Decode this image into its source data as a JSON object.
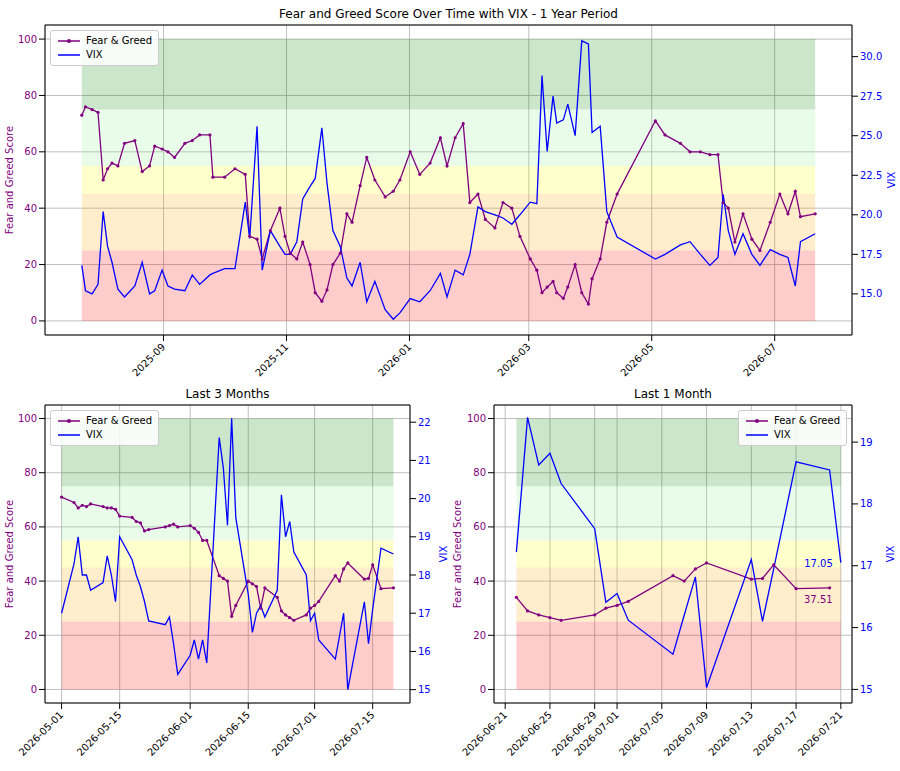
{
  "chart_data": [
    {
      "type": "line",
      "title": "Fear and Greed Score Over Time with VIX - 1 Year Period",
      "x": [
        2025.555,
        2025.56,
        2025.569,
        2025.577,
        2025.584,
        2025.59,
        2025.596,
        2025.604,
        2025.613,
        2025.627,
        2025.637,
        2025.647,
        2025.654,
        2025.664,
        2025.672,
        2025.681,
        2025.695,
        2025.705,
        2025.715,
        2025.729,
        2025.733,
        2025.749,
        2025.763,
        2025.777,
        2025.783,
        2025.793,
        2025.8,
        2025.811,
        2025.824,
        2025.831,
        2025.838,
        2025.847,
        2025.855,
        2025.865,
        2025.872,
        2025.881,
        2025.888,
        2025.896,
        2025.906,
        2025.915,
        2025.922,
        2025.933,
        2025.942,
        2025.953,
        2025.967,
        2025.978,
        2025.987,
        2026.001,
        2026.014,
        2026.028,
        2026.042,
        2026.051,
        2026.062,
        2026.073,
        2026.082,
        2026.093,
        2026.103,
        2026.116,
        2026.127,
        2026.139,
        2026.15,
        2026.164,
        2026.173,
        2026.18,
        2026.187,
        2026.195,
        2026.2,
        2026.209,
        2026.215,
        2026.225,
        2026.234,
        2026.243,
        2026.248,
        2026.259,
        2026.268,
        2026.282,
        2026.334,
        2026.347,
        2026.368,
        2026.381,
        2026.395,
        2026.408,
        2026.419,
        2026.426,
        2026.433,
        2026.442,
        2026.453,
        2026.465,
        2026.476,
        2026.49,
        2026.503,
        2026.514,
        2026.524,
        2026.531,
        2026.551
      ],
      "xlim": [
        2025.505,
        2026.601
      ],
      "xticks": [
        {
          "value": 2025.666,
          "label": "2025-09"
        },
        {
          "value": 2025.833,
          "label": "2025-11"
        },
        {
          "value": 2026,
          "label": "2026-01"
        },
        {
          "value": 2026.162,
          "label": "2026-03"
        },
        {
          "value": 2026.329,
          "label": "2026-05"
        },
        {
          "value": 2026.496,
          "label": "2026-07"
        }
      ],
      "y_label": "Fear and Greed Score",
      "y2_label": "VIX",
      "ylim": [
        -5,
        105
      ],
      "yticks": [
        0,
        20,
        40,
        60,
        80,
        100
      ],
      "y2lim": [
        12.4,
        32
      ],
      "y2ticks": [
        {
          "value": 15,
          "label": "15.0"
        },
        {
          "value": 17.5,
          "label": "17.5"
        },
        {
          "value": 20,
          "label": "20.0"
        },
        {
          "value": 22.5,
          "label": "22.5"
        },
        {
          "value": 25,
          "label": "25.0"
        },
        {
          "value": 27.5,
          "label": "27.5"
        },
        {
          "value": 30,
          "label": "30.0"
        }
      ],
      "grid": true,
      "legend": "upper left",
      "bands": [
        {
          "from": 0,
          "to": 25,
          "color": "#ff0000"
        },
        {
          "from": 25,
          "to": 45,
          "color": "#ffa500"
        },
        {
          "from": 45,
          "to": 55,
          "color": "#ffff00"
        },
        {
          "from": 55,
          "to": 75,
          "color": "#90ee90"
        },
        {
          "from": 75,
          "to": 100,
          "color": "#008000"
        }
      ],
      "series": [
        {
          "name": "Fear & Greed",
          "color": "#800080",
          "marker": "dot",
          "values": [
            73,
            76,
            75,
            74,
            50,
            54,
            56,
            55,
            63,
            64,
            53,
            55,
            62,
            61,
            60,
            58,
            63,
            64,
            66,
            66,
            51,
            51,
            54,
            52,
            30,
            29,
            22,
            32,
            40,
            30,
            24,
            22,
            28,
            20,
            10,
            7,
            11,
            20,
            24,
            38,
            35,
            48,
            58,
            50,
            44,
            46,
            50,
            60,
            52,
            56,
            65,
            55,
            65,
            70,
            42,
            45,
            36,
            33,
            42,
            40,
            30,
            22,
            18,
            10,
            12,
            14,
            10,
            8,
            12,
            20,
            10,
            6,
            15,
            22,
            35,
            45,
            71,
            66,
            63,
            60,
            60,
            59,
            59,
            42,
            40,
            28,
            38,
            29,
            25,
            35,
            45,
            38,
            46,
            37,
            38
          ]
        },
        {
          "name": "VIX",
          "color": "#0000ff",
          "axis": "y2",
          "values": [
            16.8,
            15.2,
            15,
            15.6,
            20.2,
            18,
            17,
            15.3,
            14.8,
            15.5,
            17,
            15,
            15.2,
            16.5,
            15.5,
            15.3,
            15.2,
            16.2,
            15.6,
            16.2,
            16.3,
            16.6,
            16.6,
            20.8,
            18.5,
            25.6,
            16.5,
            19,
            18,
            17.5,
            17.5,
            18.3,
            21,
            21.8,
            22.3,
            25.5,
            22,
            19,
            18,
            16,
            15.5,
            17,
            14.5,
            15.8,
            14,
            13.4,
            13.8,
            14.7,
            14.5,
            15.2,
            16.3,
            14.8,
            16.5,
            16.2,
            17.5,
            20.5,
            20.2,
            20,
            19.8,
            19.4,
            20,
            20.8,
            20.7,
            28.8,
            24,
            27.5,
            25.8,
            26,
            27,
            25,
            31,
            30.8,
            25.2,
            25.6,
            20.2,
            18.6,
            17.2,
            17.5,
            18.1,
            18.3,
            17.5,
            16.8,
            17.3,
            21.3,
            19,
            17.5,
            18.8,
            17.5,
            16.8,
            17.8,
            17.5,
            17.3,
            15.5,
            18.3,
            18.8
          ]
        }
      ]
    },
    {
      "type": "line",
      "title": "Last 3 Months",
      "x": [
        "2026-05-01",
        "2026-05-04",
        "2026-05-05",
        "2026-05-06",
        "2026-05-07",
        "2026-05-08",
        "2026-05-11",
        "2026-05-12",
        "2026-05-13",
        "2026-05-14",
        "2026-05-15",
        "2026-05-18",
        "2026-05-19",
        "2026-05-20",
        "2026-05-21",
        "2026-05-22",
        "2026-05-26",
        "2026-05-27",
        "2026-05-28",
        "2026-05-29",
        "2026-06-01",
        "2026-06-02",
        "2026-06-03",
        "2026-06-04",
        "2026-06-05",
        "2026-06-08",
        "2026-06-09",
        "2026-06-10",
        "2026-06-11",
        "2026-06-12",
        "2026-06-15",
        "2026-06-16",
        "2026-06-17",
        "2026-06-18",
        "2026-06-19",
        "2026-06-22",
        "2026-06-23",
        "2026-06-24",
        "2026-06-25",
        "2026-06-26",
        "2026-06-29",
        "2026-06-30",
        "2026-07-01",
        "2026-07-02",
        "2026-07-06",
        "2026-07-07",
        "2026-07-08",
        "2026-07-09",
        "2026-07-13",
        "2026-07-14",
        "2026-07-15",
        "2026-07-17",
        "2026-07-20"
      ],
      "xlim": [
        "2026-04-27",
        "2026-07-24"
      ],
      "xticks": [
        "2026-05-01",
        "2026-05-15",
        "2026-06-01",
        "2026-06-15",
        "2026-07-01",
        "2026-07-15"
      ],
      "y_label": "Fear and Greed Score",
      "y2_label": "VIX",
      "ylim": [
        -5,
        105
      ],
      "yticks": [
        0,
        20,
        40,
        60,
        80,
        100
      ],
      "y2lim": [
        14.65,
        22.45
      ],
      "y2ticks": [
        15,
        16,
        17,
        18,
        19,
        20,
        21,
        22
      ],
      "grid": true,
      "legend": "upper left",
      "bands": [
        {
          "from": 0,
          "to": 25,
          "color": "#ff0000"
        },
        {
          "from": 25,
          "to": 45,
          "color": "#ffa500"
        },
        {
          "from": 45,
          "to": 55,
          "color": "#ffff00"
        },
        {
          "from": 55,
          "to": 75,
          "color": "#90ee90"
        },
        {
          "from": 75,
          "to": 100,
          "color": "#008000"
        }
      ],
      "series": [
        {
          "name": "Fear & Greed",
          "color": "#800080",
          "marker": "dot",
          "values": [
            71,
            69,
            67,
            68,
            67.5,
            68.5,
            67.5,
            67,
            67,
            66.5,
            64,
            63.5,
            62,
            61.5,
            58.5,
            59,
            60,
            60.5,
            61,
            60,
            60.5,
            59.5,
            58,
            55,
            55,
            42,
            41,
            40,
            27,
            31,
            40,
            39,
            38,
            30,
            37.5,
            34,
            29,
            27.5,
            26.5,
            25.5,
            27.5,
            30,
            31,
            32.5,
            42,
            40,
            44.5,
            46.7,
            40.7,
            41,
            46,
            37.2,
            37.51
          ]
        },
        {
          "name": "VIX",
          "color": "#0000ff",
          "axis": "y2",
          "values": [
            17,
            18.3,
            19,
            18,
            18,
            17.6,
            17.8,
            18.5,
            18,
            17.3,
            19,
            18.4,
            18,
            17.7,
            17.3,
            16.8,
            16.7,
            16.9,
            16.2,
            15.4,
            15.9,
            16.3,
            15.8,
            16.3,
            15.7,
            21.6,
            20.8,
            19.3,
            22.1,
            19.5,
            17.5,
            16.5,
            17,
            17.2,
            16.9,
            17.6,
            20.1,
            19,
            19.4,
            18.6,
            18,
            16.8,
            17,
            16.3,
            15.8,
            16.4,
            17,
            15,
            17.3,
            16.2,
            17.1,
            18.7,
            18.55
          ]
        }
      ]
    },
    {
      "type": "line",
      "title": "Last 1 Month",
      "x": [
        "2026-06-22",
        "2026-06-23",
        "2026-06-24",
        "2026-06-25",
        "2026-06-26",
        "2026-06-29",
        "2026-06-30",
        "2026-07-01",
        "2026-07-02",
        "2026-07-06",
        "2026-07-07",
        "2026-07-08",
        "2026-07-09",
        "2026-07-13",
        "2026-07-14",
        "2026-07-15",
        "2026-07-17",
        "2026-07-20",
        "2026-07-21"
      ],
      "xlim": [
        "2026-06-20",
        "2026-07-22"
      ],
      "xticks": [
        "2026-06-21",
        "2026-06-25",
        "2026-06-29",
        "2026-07-01",
        "2026-07-05",
        "2026-07-09",
        "2026-07-13",
        "2026-07-17",
        "2026-07-21"
      ],
      "y_label": "Fear and Greed Score",
      "y2_label": "VIX",
      "ylim": [
        -5,
        105
      ],
      "yticks": [
        0,
        20,
        40,
        60,
        80,
        100
      ],
      "y2lim": [
        14.78,
        19.6
      ],
      "y2ticks": [
        15,
        16,
        17,
        18,
        19
      ],
      "grid": true,
      "legend": "upper right",
      "bands": [
        {
          "from": 0,
          "to": 25,
          "color": "#ff0000"
        },
        {
          "from": 25,
          "to": 45,
          "color": "#ffa500"
        },
        {
          "from": 45,
          "to": 55,
          "color": "#ffff00"
        },
        {
          "from": 55,
          "to": 75,
          "color": "#90ee90"
        },
        {
          "from": 75,
          "to": 100,
          "color": "#008000"
        }
      ],
      "series": [
        {
          "name": "Fear & Greed",
          "color": "#800080",
          "marker": "dot",
          "values": [
            34,
            29,
            27.5,
            26.5,
            25.5,
            27.5,
            30,
            31,
            32.5,
            42,
            40,
            44.5,
            46.7,
            40.7,
            41,
            46,
            37.2,
            37.51,
            null
          ]
        },
        {
          "name": "VIX",
          "color": "#0000ff",
          "axis": "y2",
          "values": [
            17.22,
            19.4,
            18.63,
            18.82,
            18.33,
            17.6,
            16.41,
            16.55,
            16.12,
            15.57,
            16.2,
            16.82,
            15.03,
            17.1,
            16.1,
            16.95,
            18.68,
            18.55,
            17.05
          ]
        }
      ],
      "annotations": [
        {
          "text": "17.05",
          "x": "2026-07-21",
          "y": 17.05,
          "series": "VIX"
        },
        {
          "text": "37.51",
          "x": "2026-07-20",
          "y": 37.51,
          "series": "Fear & Greed"
        }
      ]
    }
  ]
}
